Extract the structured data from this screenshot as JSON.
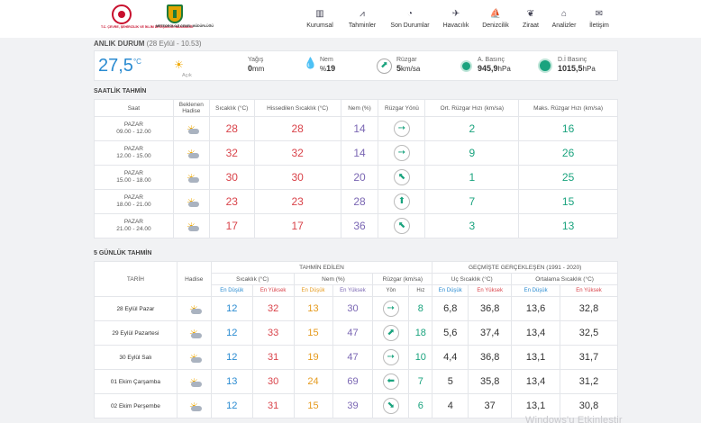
{
  "header": {
    "logo1_text": "T.C. ÇEVRE, ŞEHİRCİLİK VE İKLİM DEĞİŞİKLİĞİ BAKANLIĞI",
    "logo2_text": "METEOROLOJİ GENEL MÜDÜRLÜĞÜ",
    "nav": [
      {
        "label": "Kurumsal",
        "icon": "building-icon",
        "glyph": "▥"
      },
      {
        "label": "Tahminler",
        "icon": "chart-icon",
        "glyph": "⩘"
      },
      {
        "label": "Son Durumlar",
        "icon": "gauge-icon",
        "glyph": "◔"
      },
      {
        "label": "Havacılık",
        "icon": "plane-icon",
        "glyph": "✈"
      },
      {
        "label": "Denizcilik",
        "icon": "ship-icon",
        "glyph": "⛵"
      },
      {
        "label": "Ziraat",
        "icon": "leaf-icon",
        "glyph": "❦"
      },
      {
        "label": "Analizler",
        "icon": "analysis-icon",
        "glyph": "⌂"
      },
      {
        "label": "İletişim",
        "icon": "envelope-icon",
        "glyph": "✉"
      }
    ]
  },
  "anlik": {
    "title": "ANLIK DURUM",
    "date": "(28 Eylül - 10.53)",
    "temp": "27,5",
    "temp_unit": "°C",
    "condition": "Açık",
    "rain_label": "Yağış",
    "rain_value": "0",
    "rain_unit": "mm",
    "humidity_label": "Nem",
    "humidity_prefix": "%",
    "humidity_value": "19",
    "wind_label": "Rüzgar",
    "wind_value": "5",
    "wind_unit": "km/sa",
    "pressure_label": "A. Basınç",
    "pressure_value": "945,9",
    "pressure_unit": "hPa",
    "sea_pressure_label": "D.İ Basınç",
    "sea_pressure_value": "1015,5",
    "sea_pressure_unit": "hPa"
  },
  "saatlik": {
    "title": "SAATLİK TAHMİN",
    "headers": {
      "saat": "Saat",
      "hadise": "Beklenen Hadise",
      "sicaklik": "Sıcaklık (°C)",
      "hissedilen": "Hissedilen Sıcaklık (°C)",
      "nem": "Nem (%)",
      "yon": "Rüzgar Yönü",
      "ort": "Ort. Rüzgar Hızı (km/sa)",
      "maks": "Maks. Rüzgar Hızı (km/sa)"
    },
    "rows": [
      {
        "day": "PAZAR",
        "time": "09.00 - 12.00",
        "temp": "28",
        "feels": "28",
        "hum": "14",
        "dir": "➙",
        "avg": "2",
        "max": "16"
      },
      {
        "day": "PAZAR",
        "time": "12.00 - 15.00",
        "temp": "32",
        "feels": "32",
        "hum": "14",
        "dir": "➙",
        "avg": "9",
        "max": "26"
      },
      {
        "day": "PAZAR",
        "time": "15.00 - 18.00",
        "temp": "30",
        "feels": "30",
        "hum": "20",
        "dir": "⬉",
        "avg": "1",
        "max": "25"
      },
      {
        "day": "PAZAR",
        "time": "18.00 - 21.00",
        "temp": "23",
        "feels": "23",
        "hum": "28",
        "dir": "⬆",
        "avg": "7",
        "max": "15"
      },
      {
        "day": "PAZAR",
        "time": "21.00 - 24.00",
        "temp": "17",
        "feels": "17",
        "hum": "36",
        "dir": "⬉",
        "avg": "3",
        "max": "13"
      }
    ]
  },
  "gunluk": {
    "title": "5 GÜNLÜK TAHMİN",
    "headers": {
      "tahmin_edilen": "TAHMİN EDİLEN",
      "gecmis": "GEÇMİŞTE GERÇEKLEŞEN (1991 - 2020)",
      "tarih": "TARİH",
      "hadise": "Hadise",
      "sicaklik": "Sıcaklık (°C)",
      "nem": "Nem (%)",
      "ruzgar": "Rüzgar (km/sa)",
      "uc": "Uç Sıcaklık (°C)",
      "ortalama": "Ortalama Sıcaklık (°C)",
      "en_dusuk": "En Düşük",
      "en_yuksek": "En Yüksek",
      "yon": "Yön",
      "hiz": "Hız"
    },
    "rows": [
      {
        "date": "28 Eylül Pazar",
        "tmin": "12",
        "tmax": "32",
        "hmin": "13",
        "hmax": "30",
        "dir": "➙",
        "speed": "8",
        "umin": "6,8",
        "umax": "36,8",
        "omin": "13,6",
        "omax": "32,8"
      },
      {
        "date": "29 Eylül Pazartesi",
        "tmin": "12",
        "tmax": "33",
        "hmin": "15",
        "hmax": "47",
        "dir": "⬈",
        "speed": "18",
        "umin": "5,6",
        "umax": "37,4",
        "omin": "13,4",
        "omax": "32,5"
      },
      {
        "date": "30 Eylül Salı",
        "tmin": "12",
        "tmax": "31",
        "hmin": "19",
        "hmax": "47",
        "dir": "➙",
        "speed": "10",
        "umin": "4,4",
        "umax": "36,8",
        "omin": "13,1",
        "omax": "31,7"
      },
      {
        "date": "01 Ekim Çarşamba",
        "tmin": "13",
        "tmax": "30",
        "hmin": "24",
        "hmax": "69",
        "dir": "⬅",
        "speed": "7",
        "umin": "5",
        "umax": "35,8",
        "omin": "13,4",
        "omax": "31,2"
      },
      {
        "date": "02 Ekim Perşembe",
        "tmin": "12",
        "tmax": "31",
        "hmin": "15",
        "hmax": "39",
        "dir": "⬊",
        "speed": "6",
        "umin": "4",
        "umax": "37",
        "omin": "13,1",
        "omax": "30,8"
      }
    ]
  },
  "watermark": "Windows'u Etkinleştir"
}
